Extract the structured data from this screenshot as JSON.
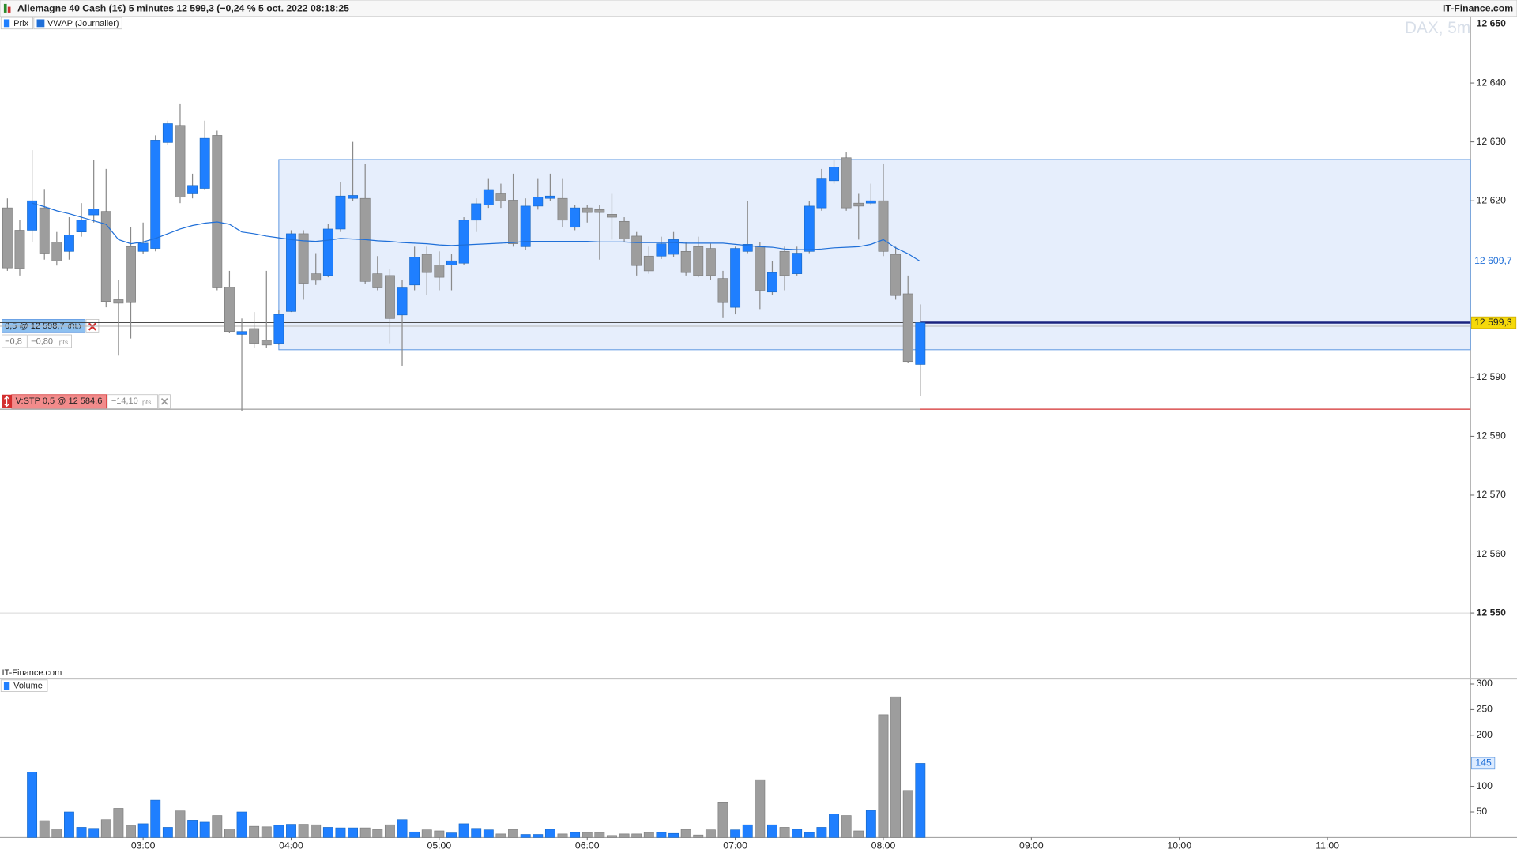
{
  "header": {
    "title": "Allemagne 40 Cash (1€) 5 minutes 12 599,3 (−0,24 % 5 oct. 2022 08:18:25",
    "source": "IT-Finance.com"
  },
  "chart_data": [
    {
      "type": "candlestick",
      "watermark": "DAX, 5m",
      "credit": "IT-Finance.com",
      "x": [
        125,
        130,
        135,
        140,
        145,
        150,
        155,
        160,
        165,
        170,
        175,
        180,
        185,
        190,
        195,
        200,
        205,
        210,
        215,
        220,
        225,
        230,
        235,
        240,
        245,
        250,
        255,
        260,
        265,
        270,
        275,
        280,
        285,
        290,
        295,
        300,
        305,
        310,
        315,
        320,
        325,
        330,
        335,
        340,
        345,
        350,
        355,
        360,
        365,
        370,
        375,
        380,
        385,
        390,
        395,
        400,
        405,
        410,
        415,
        420,
        425,
        430,
        435,
        440,
        445,
        450,
        455,
        460,
        465,
        470,
        475,
        480,
        485,
        490,
        495
      ],
      "series": [
        {
          "name": "Prix",
          "type": "candlestick",
          "up_color": "#1f7fff",
          "down_color": "#9d9d9d",
          "open": [
            12618.8,
            12615,
            12615,
            12618.8,
            12613,
            12611.4,
            12614.7,
            12617.6,
            12618.2,
            12603.2,
            12612.2,
            12611.4,
            12611.9,
            12629.9,
            12632.8,
            12621.3,
            12622.1,
            12631.1,
            12605.3,
            12597.3,
            12598.3,
            12596.3,
            12595.8,
            12601.2,
            12614.4,
            12607.6,
            12607.3,
            12615.2,
            12620.4,
            12620.4,
            12607.6,
            12607.3,
            12600.6,
            12605.7,
            12610.9,
            12609.1,
            12609.1,
            12609.4,
            12616.7,
            12619.3,
            12621.3,
            12620.1,
            12612.2,
            12619.1,
            12620.4,
            12620.4,
            12615.5,
            12618.8,
            12618.5,
            12617.7,
            12616.5,
            12614,
            12610.6,
            12610.6,
            12610.9,
            12611.4,
            12612.2,
            12611.9,
            12606.8,
            12601.9,
            12611.4,
            12612.2,
            12604.5,
            12611.4,
            12607.6,
            12611.4,
            12618.8,
            12623.4,
            12627.3,
            12619.6,
            12619.6,
            12620,
            12610.9,
            12604.2,
            12592.2
          ],
          "high": [
            12620.4,
            12616.7,
            12628.6,
            12622,
            12614.7,
            12617.2,
            12619.6,
            12627,
            12625.4,
            12606.5,
            12615.5,
            12616.3,
            12631.1,
            12633.6,
            12636.4,
            12624.6,
            12633.6,
            12631.9,
            12608.1,
            12600,
            12601.1,
            12608.1,
            12601.5,
            12615,
            12615,
            12611.1,
            12616,
            12623.2,
            12630,
            12626.2,
            12610.6,
            12608.4,
            12606.5,
            12612.2,
            12612.2,
            12611.4,
            12611,
            12617.2,
            12620.4,
            12623.7,
            12622.9,
            12624.6,
            12620.4,
            12623.7,
            12624.6,
            12623.7,
            12619.3,
            12619.3,
            12619.3,
            12621.3,
            12617.2,
            12614.7,
            12612.2,
            12613.9,
            12614.7,
            12613,
            12613.9,
            12612.7,
            12608.1,
            12612.2,
            12620,
            12613,
            12609.8,
            12612.2,
            12612.2,
            12620,
            12625.4,
            12627,
            12628.2,
            12621.3,
            12622.9,
            12626.2,
            12612.2,
            12607.3,
            12602.4
          ],
          "low": [
            12608.1,
            12607.3,
            12613,
            12610,
            12609,
            12610,
            12613.9,
            12616.3,
            12601.9,
            12593.7,
            12596.6,
            12611,
            12611.4,
            12629.5,
            12619.6,
            12620.4,
            12621.8,
            12604.8,
            12597.5,
            12584.3,
            12595,
            12595,
            12595.5,
            12601.1,
            12603.2,
            12605.7,
            12607,
            12614.7,
            12620,
            12605.8,
            12604.8,
            12595.8,
            12592,
            12604.8,
            12604,
            12604.8,
            12604.8,
            12609.1,
            12614.7,
            12618.8,
            12618.8,
            12612.2,
            12611.7,
            12618.5,
            12620,
            12615.5,
            12615,
            12616.3,
            12610,
            12613.4,
            12613,
            12607.3,
            12607.6,
            12610.1,
            12610.4,
            12607.3,
            12607,
            12606.5,
            12600.2,
            12600.7,
            12611.1,
            12601.6,
            12604,
            12604.8,
            12607.3,
            12611.1,
            12618.3,
            12622.9,
            12618.3,
            12613.4,
            12619.3,
            12610.6,
            12603.2,
            12592.4,
            12586.8
          ],
          "close": [
            12608.6,
            12608.5,
            12620,
            12611.1,
            12609.8,
            12614.2,
            12616.7,
            12618.6,
            12602.9,
            12602.6,
            12602.7,
            12612.8,
            12630.3,
            12633.1,
            12620.6,
            12622.6,
            12630.6,
            12605.2,
            12597.8,
            12597.8,
            12595.8,
            12595.5,
            12600.7,
            12614.4,
            12606,
            12606.5,
            12615.2,
            12620.8,
            12620.9,
            12606.3,
            12605.2,
            12600,
            12605.2,
            12610.4,
            12607.8,
            12607,
            12609.8,
            12616.7,
            12619.5,
            12621.9,
            12620,
            12612.7,
            12619.1,
            12620.6,
            12620.8,
            12616.7,
            12618.8,
            12618,
            12618,
            12617.2,
            12613.5,
            12609,
            12608.1,
            12612.7,
            12613.4,
            12607.8,
            12607.3,
            12607.3,
            12602.7,
            12611.9,
            12612.6,
            12604.8,
            12607.8,
            12607.3,
            12611.1,
            12619.1,
            12623.7,
            12625.7,
            12618.8,
            12619.1,
            12620,
            12611.4,
            12603.9,
            12592.7,
            12599.3
          ]
        },
        {
          "name": "VWAP (Journalier)",
          "type": "line",
          "color": "#1f6fd8",
          "values": [
            null,
            null,
            12619.6,
            12619.0,
            12618.3,
            12617.8,
            12617.2,
            12616.6,
            12616.0,
            12613.4,
            12612.7,
            12613.0,
            12613.6,
            12614.4,
            12615.2,
            12615.8,
            12616.2,
            12616.4,
            12616.0,
            12614.7,
            12614.4,
            12614.0,
            12613.7,
            12613.4,
            12613.2,
            12613.1,
            12613.3,
            12613.6,
            12613.5,
            12613.4,
            12613.2,
            12613.1,
            12612.9,
            12612.8,
            12612.7,
            12612.5,
            12612.4,
            12612.5,
            12612.6,
            12612.7,
            12612.8,
            12612.9,
            12613.1,
            12613.1,
            12613.1,
            12613.1,
            12613.1,
            12613.1,
            12613.0,
            12613.0,
            12613.0,
            12612.9,
            12612.9,
            12612.9,
            12612.9,
            12612.8,
            12612.8,
            12612.8,
            12612.8,
            12612.6,
            12612.4,
            12612.2,
            12612.1,
            12611.8,
            12611.7,
            12611.7,
            12611.8,
            12612.0,
            12612.1,
            12612.2,
            12612.6,
            12613.4,
            12612.0,
            12611.0,
            12609.7
          ],
          "last_value": {
            "value": 12609.7,
            "label": "12 609,7"
          }
        }
      ],
      "last_price": {
        "value": 12599.3,
        "label": "12 599,3"
      },
      "zone": {
        "top": 12627.0,
        "bottom": 12594.7,
        "x_start": 235,
        "color": "#e6eefc"
      },
      "orders": [
        {
          "label": "0,5 @ 12 598,7",
          "tag": "(RL)",
          "price": 12598.7,
          "diff": "−0,8",
          "pnl": "−0,80",
          "unit": "pts",
          "color": "#8fc1f0"
        },
        {
          "label": "V:STP 0,5 @ 12 584,6",
          "price": 12584.6,
          "pnl": "−14,10",
          "unit": "pts",
          "color": "#f28b8b"
        }
      ],
      "xlim": [
        122,
        718
      ],
      "xticks": [
        {
          "value": 180,
          "label": "03:00"
        },
        {
          "value": 240,
          "label": "04:00"
        },
        {
          "value": 300,
          "label": "05:00"
        },
        {
          "value": 360,
          "label": "06:00"
        },
        {
          "value": 420,
          "label": "07:00"
        },
        {
          "value": 480,
          "label": "08:00"
        },
        {
          "value": 540,
          "label": "09:00"
        },
        {
          "value": 600,
          "label": "10:00"
        },
        {
          "value": 660,
          "label": "11:00"
        }
      ],
      "ylim": [
        12538.8,
        12651.3
      ],
      "yticks": [
        {
          "value": 12550,
          "label": "12 550"
        },
        {
          "value": 12560,
          "label": "12 560"
        },
        {
          "value": 12570,
          "label": "12 570"
        },
        {
          "value": 12580,
          "label": "12 580"
        },
        {
          "value": 12590,
          "label": "12 590"
        },
        {
          "value": 12620,
          "label": "12 620"
        },
        {
          "value": 12630,
          "label": "12 630"
        },
        {
          "value": 12640,
          "label": "12 640"
        },
        {
          "value": 12650,
          "label": "12 650"
        }
      ]
    },
    {
      "type": "bar",
      "legend": "Volume",
      "values": [
        null,
        null,
        128,
        33,
        17,
        50,
        20,
        18,
        35,
        57,
        23,
        27,
        73,
        20,
        52,
        34,
        30,
        43,
        17,
        50,
        22,
        21,
        24,
        26,
        26,
        25,
        20,
        19,
        19,
        19,
        16,
        25,
        35,
        11,
        15,
        13,
        9,
        27,
        18,
        15,
        7,
        16,
        6,
        6,
        16,
        7,
        10,
        10,
        10,
        4,
        7,
        7,
        10,
        10,
        8,
        16,
        5,
        15,
        68,
        15,
        25,
        113,
        25,
        20,
        16,
        10,
        20,
        46,
        43,
        13,
        53,
        240,
        275,
        92,
        145
      ],
      "ylim": [
        0,
        308
      ],
      "yticks": [
        50,
        100,
        200,
        250,
        300
      ]
    }
  ]
}
